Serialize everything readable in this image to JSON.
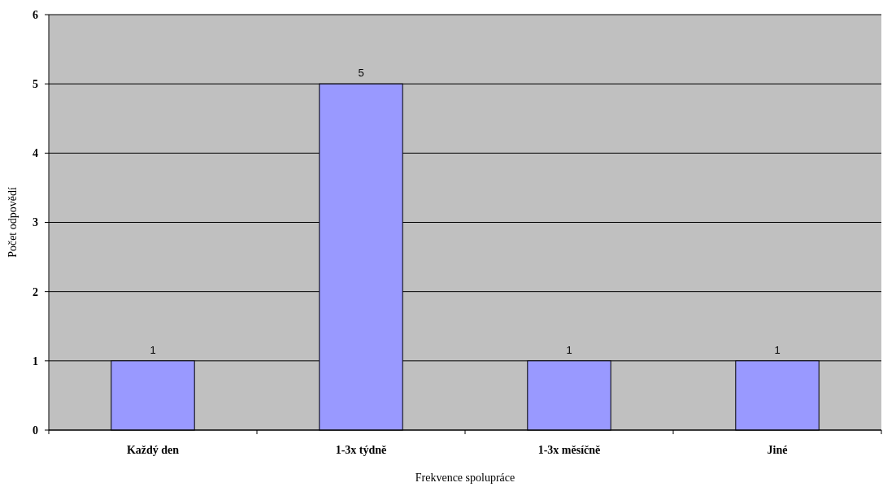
{
  "chart_data": {
    "type": "bar",
    "xlabel": "Frekvence spolupráce",
    "ylabel": "Počet odpovědí",
    "categories": [
      "Každý den",
      "1-3x týdně",
      "1-3x měsíčně",
      "Jiné"
    ],
    "values": [
      1,
      5,
      1,
      1
    ],
    "color": "#9999ff",
    "ylim": [
      0,
      6
    ],
    "yticks": [
      0,
      1,
      2,
      3,
      4,
      5,
      6
    ],
    "grid": "y",
    "data_labels": true
  }
}
